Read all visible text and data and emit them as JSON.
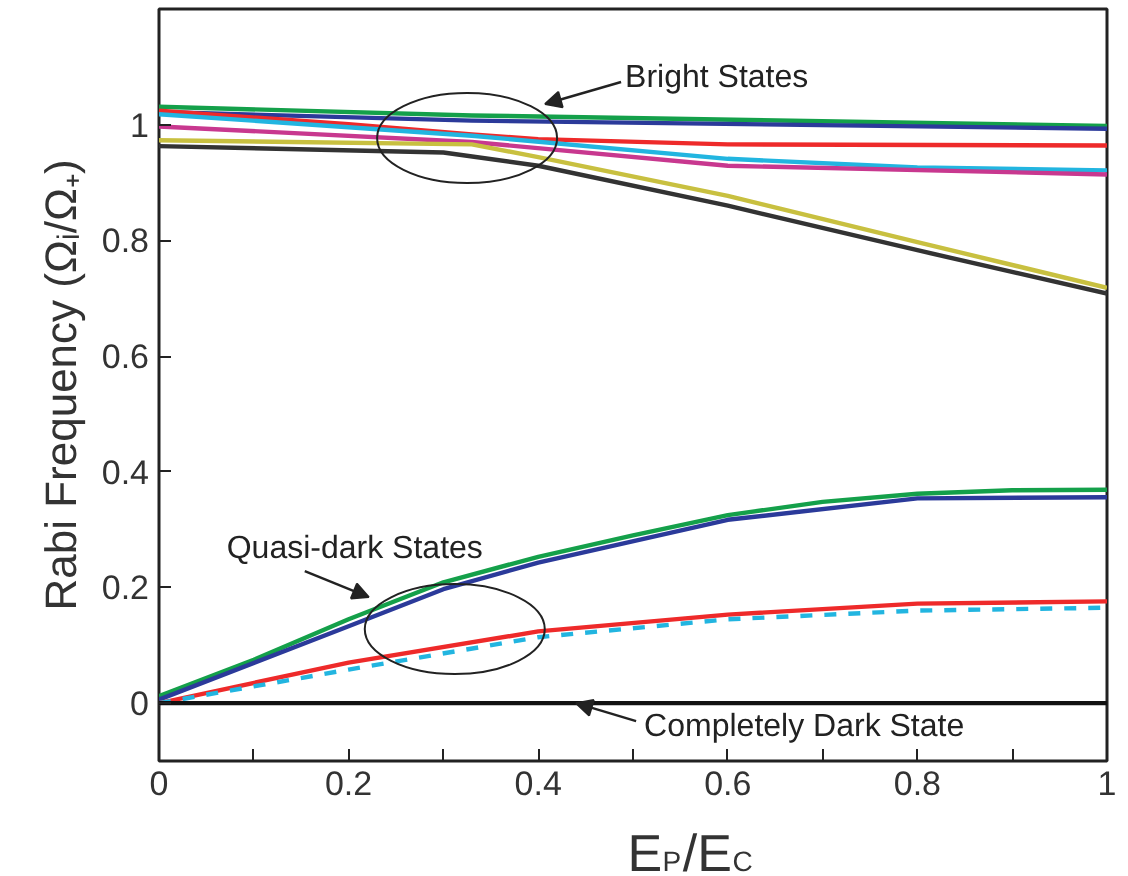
{
  "chart_data": {
    "type": "line",
    "xlabel": "E$_{P}$/E$_{C}$",
    "ylabel": "Rabi Frequency (Ωᵢ/Ω₊)",
    "xlim": [
      0,
      1
    ],
    "ylim": [
      -0.1,
      1.2
    ],
    "xticks": [
      0,
      {
        "value": 0.1,
        "label": null
      },
      0.2,
      {
        "value": 0.3,
        "label": null
      },
      0.4,
      {
        "value": 0.5,
        "label": null
      },
      0.6,
      {
        "value": 0.7,
        "label": null
      },
      0.8,
      {
        "value": 0.9,
        "label": null
      },
      1
    ],
    "yticks": [
      0,
      0.2,
      0.4,
      0.6,
      0.8,
      1
    ],
    "grid": false,
    "marker": "none",
    "series": [
      {
        "color": "#14a04a",
        "x": [
          0,
          0.33,
          1
        ],
        "values": [
          1.031,
          1.016,
          0.998
        ]
      },
      {
        "color": "#2b3a9a",
        "x": [
          0,
          0.33,
          1
        ],
        "values": [
          1.022,
          1.007,
          0.993
        ]
      },
      {
        "color": "#ee2a2a",
        "x": [
          0,
          0.2,
          0.33,
          0.4,
          0.6,
          1
        ],
        "values": [
          1.024,
          1.001,
          0.983,
          0.975,
          0.966,
          0.964
        ]
      },
      {
        "color": "#22b5e0",
        "x": [
          0,
          0.33,
          0.6,
          0.8,
          1
        ],
        "values": [
          1.018,
          0.981,
          0.941,
          0.926,
          0.921
        ]
      },
      {
        "color": "#c8388f",
        "x": [
          0,
          0.33,
          0.6,
          1
        ],
        "values": [
          0.997,
          0.97,
          0.929,
          0.914
        ]
      },
      {
        "color": "#c8c040",
        "x": [
          0,
          0.33,
          0.4,
          0.6,
          0.8,
          1
        ],
        "values": [
          0.973,
          0.966,
          0.944,
          0.877,
          0.797,
          0.718
        ]
      },
      {
        "color": "#333333",
        "x": [
          0,
          0.3,
          0.4,
          0.6,
          0.8,
          1
        ],
        "values": [
          0.963,
          0.952,
          0.929,
          0.86,
          0.783,
          0.708
        ]
      },
      {
        "color": "#14a04a",
        "x": [
          0,
          0.1,
          0.2,
          0.3,
          0.4,
          0.5,
          0.6,
          0.7,
          0.8,
          0.9,
          1
        ],
        "values": [
          0.012,
          0.075,
          0.145,
          0.209,
          0.253,
          0.29,
          0.325,
          0.348,
          0.362,
          0.368,
          0.369
        ]
      },
      {
        "color": "#2b3a9a",
        "x": [
          0,
          0.2,
          0.3,
          0.4,
          0.6,
          0.8,
          1
        ],
        "values": [
          0.006,
          0.133,
          0.197,
          0.243,
          0.317,
          0.354,
          0.356
        ]
      },
      {
        "color": "#ee2a2a",
        "x": [
          0,
          0.2,
          0.4,
          0.6,
          0.8,
          1
        ],
        "values": [
          0,
          0.07,
          0.124,
          0.153,
          0.172,
          0.176
        ]
      },
      {
        "color": "#22b5e0",
        "line_style": "dashed",
        "x": [
          0,
          0.2,
          0.4,
          0.6,
          0.8,
          1
        ],
        "values": [
          0,
          0.058,
          0.114,
          0.145,
          0.16,
          0.165
        ]
      },
      {
        "color": "#111111",
        "x": [
          0,
          1
        ],
        "values": [
          0,
          0
        ]
      }
    ],
    "annotations": [
      "Bright States",
      "Quasi-dark States",
      {
        "text": "Completely Dark State",
        "x": 0.44,
        "y": 0
      }
    ]
  }
}
